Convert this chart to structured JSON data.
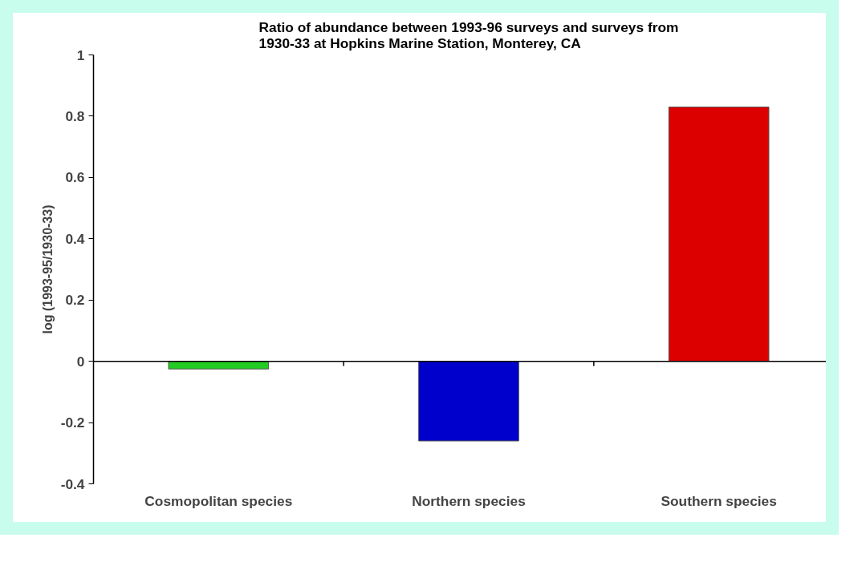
{
  "chart_data": {
    "type": "bar",
    "title": "Ratio of abundance between 1993-96 surveys and surveys from 1930-33 at Hopkins Marine Station, Monterey, CA",
    "ylabel": "log (1993-95/1930-33)",
    "categories": [
      "Cosmopolitan species",
      "Northern species",
      "Southern species"
    ],
    "values": [
      -0.025,
      -0.26,
      0.83
    ],
    "colors": [
      "#22cc22",
      "#0000cc",
      "#dd0000"
    ],
    "ylim": [
      -0.4,
      1
    ],
    "yticks": [
      -0.4,
      -0.2,
      0,
      0.2,
      0.4,
      0.6,
      0.8,
      1
    ],
    "grid": false,
    "ref_lines": [
      {
        "axis": "y",
        "value": 0,
        "color": "#000000"
      }
    ]
  }
}
